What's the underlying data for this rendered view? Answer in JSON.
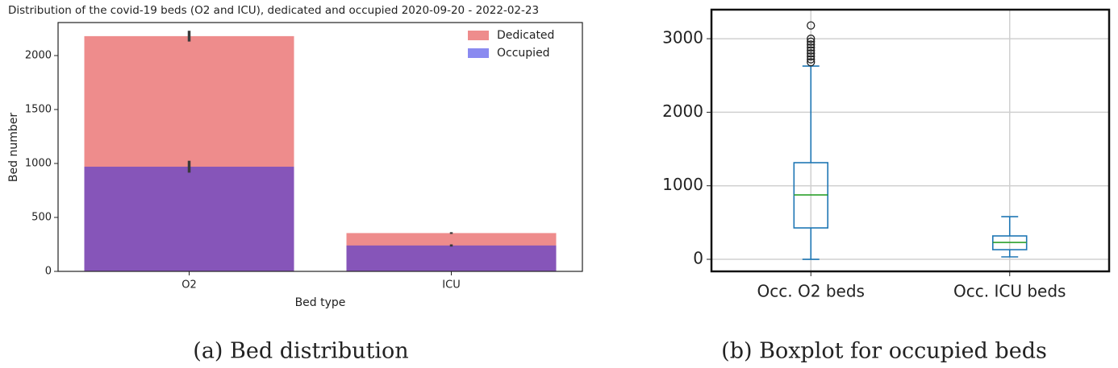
{
  "chart_data": [
    {
      "type": "bar",
      "title": "Distribution of the covid-19 beds (O2 and ICU), dedicated  and occupied 2020-09-20 - 2022-02-23",
      "xlabel": "Bed type",
      "ylabel": "Bed number",
      "categories": [
        "O2",
        "ICU"
      ],
      "series": [
        {
          "name": "Dedicated",
          "color": "#ee8c8c",
          "values": [
            2180,
            355
          ],
          "errors": [
            50,
            8
          ]
        },
        {
          "name": "Occupied",
          "color": "#8a8af0",
          "overlap_color": "#8655b9",
          "values": [
            970,
            240
          ],
          "errors": [
            55,
            10
          ]
        }
      ],
      "ylim": [
        0,
        2306
      ],
      "yticks": [
        0,
        500,
        1000,
        1500,
        2000
      ],
      "legend": "upper right",
      "caption": "(a) Bed distribution"
    },
    {
      "type": "box",
      "categories": [
        "Occ. O2 beds",
        "Occ. ICU beds"
      ],
      "boxes": [
        {
          "whislo": 0,
          "q1": 427,
          "med": 876,
          "q3": 1314,
          "whishi": 2628,
          "fliers": [
            2680,
            2720,
            2760,
            2800,
            2840,
            2880,
            2920,
            2960,
            3000,
            3180
          ]
        },
        {
          "whislo": 33,
          "q1": 131,
          "med": 230,
          "q3": 318,
          "whishi": 580,
          "fliers": []
        }
      ],
      "color": "#1f77b4",
      "median_color": "#2ca02c",
      "ylim": [
        -164,
        3395
      ],
      "yticks": [
        0,
        1000,
        2000,
        3000
      ],
      "grid": true,
      "caption": "(b) Boxplot for occupied beds"
    }
  ]
}
